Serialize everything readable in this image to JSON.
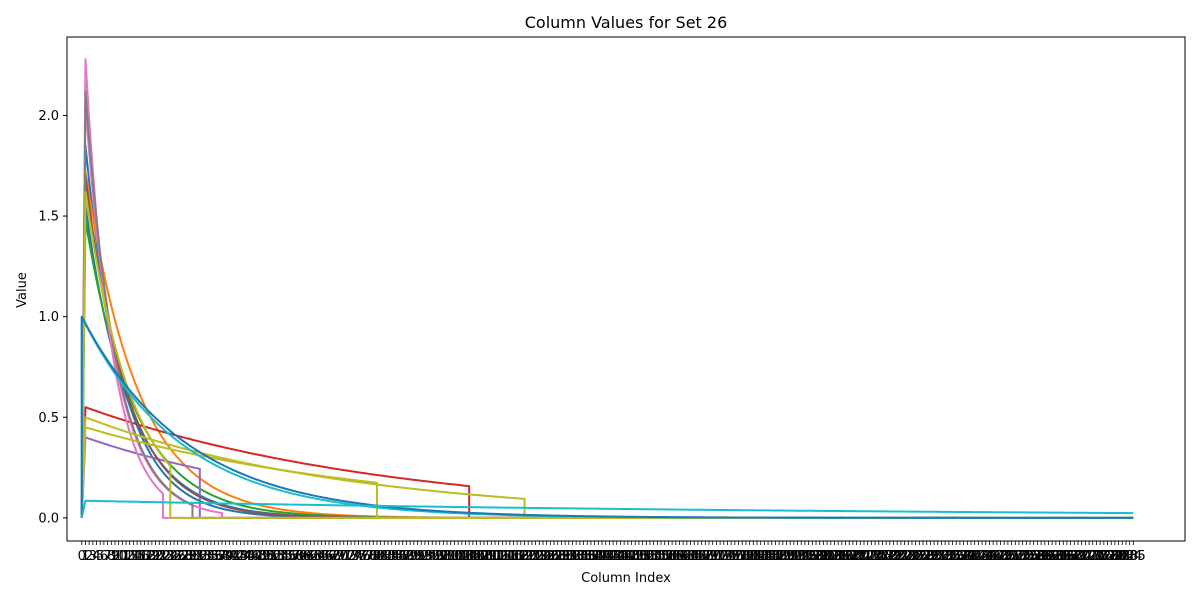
{
  "chart_data": {
    "type": "line",
    "title": "Column Values for Set 26",
    "xlabel": "Column Index",
    "ylabel": "Value",
    "xlim": [
      -4,
      299
    ],
    "ylim": [
      -0.115,
      2.39
    ],
    "yticks": [
      0.0,
      0.5,
      1.0,
      1.5,
      2.0
    ],
    "ytick_labels": [
      "0.0",
      "0.5",
      "1.0",
      "1.5",
      "2.0"
    ],
    "xtick_step": 1,
    "xtick_max": 285,
    "xtick_labels_readable": [
      "0",
      "1",
      "2",
      "3",
      "4",
      "5",
      "6",
      "7",
      "8",
      "9",
      "279"
    ],
    "grid": false,
    "legend": "none",
    "series": [
      {
        "color": "#1f77b4",
        "peak_x": 1,
        "peak_y": 1.85,
        "decay": 0.1,
        "end_x": 60
      },
      {
        "color": "#1f77b4",
        "peak_x": 1,
        "peak_y": 1.55,
        "decay": 0.085,
        "end_x": 100
      },
      {
        "color": "#ff7f0e",
        "peak_x": 1,
        "peak_y": 1.72,
        "decay": 0.07,
        "end_x": 140
      },
      {
        "color": "#2ca02c",
        "peak_x": 1,
        "peak_y": 1.48,
        "decay": 0.075,
        "end_x": 150
      },
      {
        "color": "#d62728",
        "peak_x": 1,
        "peak_y": 0.55,
        "decay": 0.012,
        "end_x": 105
      },
      {
        "color": "#9467bd",
        "peak_x": 1,
        "peak_y": 0.4,
        "decay": 0.016,
        "end_x": 32
      },
      {
        "color": "#8c564b",
        "peak_x": 1,
        "peak_y": 1.7,
        "decay": 0.09,
        "end_x": 180
      },
      {
        "color": "#e377c2",
        "peak_x": 1,
        "peak_y": 2.28,
        "decay": 0.14,
        "end_x": 22
      },
      {
        "color": "#e377c2",
        "peak_x": 1,
        "peak_y": 2.05,
        "decay": 0.12,
        "end_x": 38
      },
      {
        "color": "#7f7f7f",
        "peak_x": 1,
        "peak_y": 2.12,
        "decay": 0.12,
        "end_x": 30
      },
      {
        "color": "#bcbd22",
        "peak_x": 1,
        "peak_y": 1.62,
        "decay": 0.08,
        "end_x": 24
      },
      {
        "color": "#bcbd22",
        "peak_x": 1,
        "peak_y": 0.5,
        "decay": 0.014,
        "end_x": 120
      },
      {
        "color": "#bcbd22",
        "peak_x": 1,
        "peak_y": 0.45,
        "decay": 0.012,
        "end_x": 80
      },
      {
        "color": "#17becf",
        "peak_x": 0,
        "peak_y": 1.0,
        "decay": 0.037,
        "end_x": 285
      },
      {
        "color": "#1f77b4",
        "peak_x": 0,
        "peak_y": 1.0,
        "decay": 0.035,
        "end_x": 285
      },
      {
        "color": "#17becf",
        "peak_x": 1,
        "peak_y": 0.085,
        "decay": 0.0045,
        "end_x": 285
      }
    ]
  }
}
